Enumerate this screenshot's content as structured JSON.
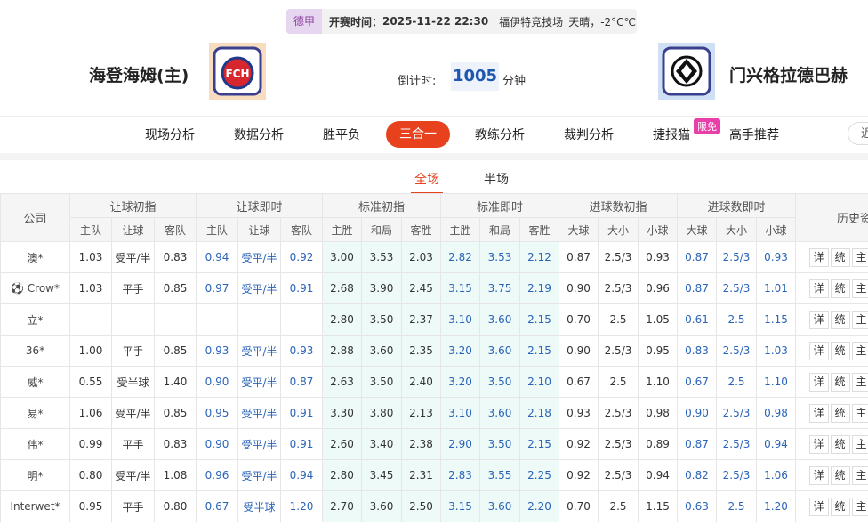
{
  "header": {
    "league": "德甲",
    "start_label": "开赛时间：",
    "start_time": "2025-11-22 22:30",
    "venue": "福伊特竞技场",
    "weather": "天晴，-2°C℃",
    "home_team": "海登海姆(主)",
    "home_logo_text": "FCH",
    "away_team": "门兴格拉德巴赫",
    "countdown_label": "倒计时:",
    "countdown": "1005",
    "countdown_unit": "分钟"
  },
  "nav": {
    "tabs": [
      "现场分析",
      "数据分析",
      "胜平负",
      "三合一",
      "教练分析",
      "裁判分析",
      "捷报猫",
      "高手推荐"
    ],
    "active": 3,
    "badge": "限免",
    "extra": "近"
  },
  "subtabs": {
    "items": [
      "全场",
      "半场"
    ],
    "active": 0
  },
  "table": {
    "company_header": "公司",
    "groups": [
      "让球初指",
      "让球即时",
      "标准初指",
      "标准即时",
      "进球数初指",
      "进球数即时"
    ],
    "history_header": "历史资",
    "subheaders": [
      "主队",
      "让球",
      "客队",
      "主队",
      "让球",
      "客队",
      "主胜",
      "和局",
      "客胜",
      "主胜",
      "和局",
      "客胜",
      "大球",
      "大小",
      "小球",
      "大球",
      "大小",
      "小球"
    ],
    "actions": [
      "详",
      "统",
      "主"
    ],
    "rows": [
      [
        "澳*",
        "1.03",
        "受平/半",
        "0.83",
        "0.94",
        "受平/半",
        "0.92",
        "3.00",
        "3.53",
        "2.03",
        "2.82",
        "3.53",
        "2.12",
        "0.87",
        "2.5/3",
        "0.93",
        "0.87",
        "2.5/3",
        "0.93"
      ],
      [
        "Crow*",
        "1.03",
        "平手",
        "0.85",
        "0.97",
        "受平/半",
        "0.91",
        "2.68",
        "3.90",
        "2.45",
        "3.15",
        "3.75",
        "2.19",
        "0.90",
        "2.5/3",
        "0.96",
        "0.87",
        "2.5/3",
        "1.01"
      ],
      [
        "立*",
        null,
        null,
        null,
        null,
        null,
        null,
        "2.80",
        "3.50",
        "2.37",
        "3.10",
        "3.60",
        "2.15",
        "0.70",
        "2.5",
        "1.05",
        "0.61",
        "2.5",
        "1.15"
      ],
      [
        "36*",
        "1.00",
        "平手",
        "0.85",
        "0.93",
        "受平/半",
        "0.93",
        "2.88",
        "3.60",
        "2.35",
        "3.20",
        "3.60",
        "2.15",
        "0.90",
        "2.5/3",
        "0.95",
        "0.83",
        "2.5/3",
        "1.03"
      ],
      [
        "威*",
        "0.55",
        "受半球",
        "1.40",
        "0.90",
        "受平/半",
        "0.87",
        "2.63",
        "3.50",
        "2.40",
        "3.20",
        "3.50",
        "2.10",
        "0.67",
        "2.5",
        "1.10",
        "0.67",
        "2.5",
        "1.10"
      ],
      [
        "易*",
        "1.06",
        "受平/半",
        "0.85",
        "0.95",
        "受平/半",
        "0.91",
        "3.30",
        "3.80",
        "2.13",
        "3.10",
        "3.60",
        "2.18",
        "0.93",
        "2.5/3",
        "0.98",
        "0.90",
        "2.5/3",
        "0.98"
      ],
      [
        "伟*",
        "0.99",
        "平手",
        "0.83",
        "0.90",
        "受平/半",
        "0.91",
        "2.60",
        "3.40",
        "2.38",
        "2.90",
        "3.50",
        "2.15",
        "0.92",
        "2.5/3",
        "0.89",
        "0.87",
        "2.5/3",
        "0.94"
      ],
      [
        "明*",
        "0.80",
        "受平/半",
        "1.08",
        "0.96",
        "受平/半",
        "0.94",
        "2.80",
        "3.45",
        "2.31",
        "2.83",
        "3.55",
        "2.25",
        "0.92",
        "2.5/3",
        "0.94",
        "0.82",
        "2.5/3",
        "1.06"
      ],
      [
        "Interwet*",
        "0.95",
        "平手",
        "0.80",
        "0.67",
        "受半球",
        "1.20",
        "2.70",
        "3.60",
        "2.50",
        "3.15",
        "3.60",
        "2.20",
        "0.70",
        "2.5",
        "1.15",
        "0.63",
        "2.5",
        "1.20"
      ]
    ]
  }
}
